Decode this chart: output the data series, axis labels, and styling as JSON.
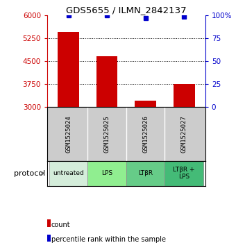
{
  "title": "GDS5655 / ILMN_2842137",
  "samples": [
    "GSM1525024",
    "GSM1525025",
    "GSM1525026",
    "GSM1525027"
  ],
  "bar_values": [
    5450,
    4650,
    3200,
    3750
  ],
  "bar_bottom": 3000,
  "bar_color": "#cc0000",
  "percentile_values": [
    99.5,
    99.5,
    97.0,
    98.5
  ],
  "percentile_color": "#0000cc",
  "left_ylim": [
    3000,
    6000
  ],
  "left_yticks": [
    3000,
    3750,
    4500,
    5250,
    6000
  ],
  "right_ylim": [
    0,
    100
  ],
  "right_yticks": [
    0,
    25,
    50,
    75,
    100
  ],
  "right_yticklabels": [
    "0",
    "25",
    "50",
    "75",
    "100%"
  ],
  "left_tick_color": "#cc0000",
  "right_tick_color": "#0000cc",
  "protocols": [
    "untreated",
    "LPS",
    "LTβR",
    "LTβR +\nLPS"
  ],
  "proto_colors": [
    "#d4edda",
    "#90EE90",
    "#66cc88",
    "#44bb77"
  ],
  "protocol_label": "protocol",
  "legend_items": [
    {
      "label": "count",
      "color": "#cc0000"
    },
    {
      "label": "percentile rank within the sample",
      "color": "#0000cc"
    }
  ],
  "label_area_color": "#cccccc",
  "background_color": "#ffffff"
}
